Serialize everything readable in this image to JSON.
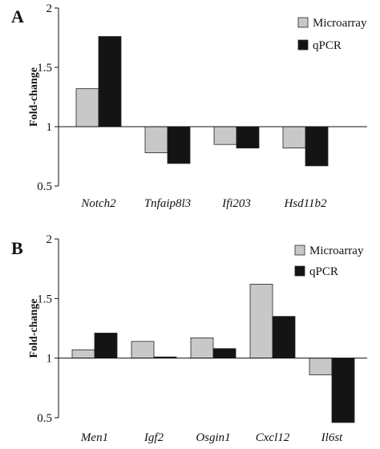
{
  "legend": {
    "microarray": "Microarray",
    "qpcr": "qPCR"
  },
  "colors": {
    "microarray": "#c8c8c8",
    "qpcr": "#141414"
  },
  "chart_data": [
    {
      "type": "bar",
      "panel": "A",
      "ylabel": "Fold-change",
      "ylim": [
        0.5,
        2
      ],
      "yticks": [
        "0.5",
        "1",
        "1.5",
        "2"
      ],
      "baseline": 1,
      "categories": [
        "Notch2",
        "Tnfaip8l3",
        "Ifi203",
        "Hsd11b2"
      ],
      "series": [
        {
          "name": "Microarray",
          "values": [
            1.32,
            0.78,
            0.85,
            0.82
          ]
        },
        {
          "name": "qPCR",
          "values": [
            1.76,
            0.69,
            0.82,
            0.67
          ]
        }
      ]
    },
    {
      "type": "bar",
      "panel": "B",
      "ylabel": "Fold-change",
      "ylim": [
        0.5,
        2
      ],
      "yticks": [
        "0.5",
        "1",
        "1.5",
        "2"
      ],
      "baseline": 1,
      "categories": [
        "Men1",
        "Igf2",
        "Osgin1",
        "Cxcl12",
        "Il6st"
      ],
      "series": [
        {
          "name": "Microarray",
          "values": [
            1.07,
            1.14,
            1.17,
            1.62,
            0.86
          ]
        },
        {
          "name": "qPCR",
          "values": [
            1.21,
            1.01,
            1.08,
            1.35,
            0.46
          ]
        }
      ]
    }
  ]
}
